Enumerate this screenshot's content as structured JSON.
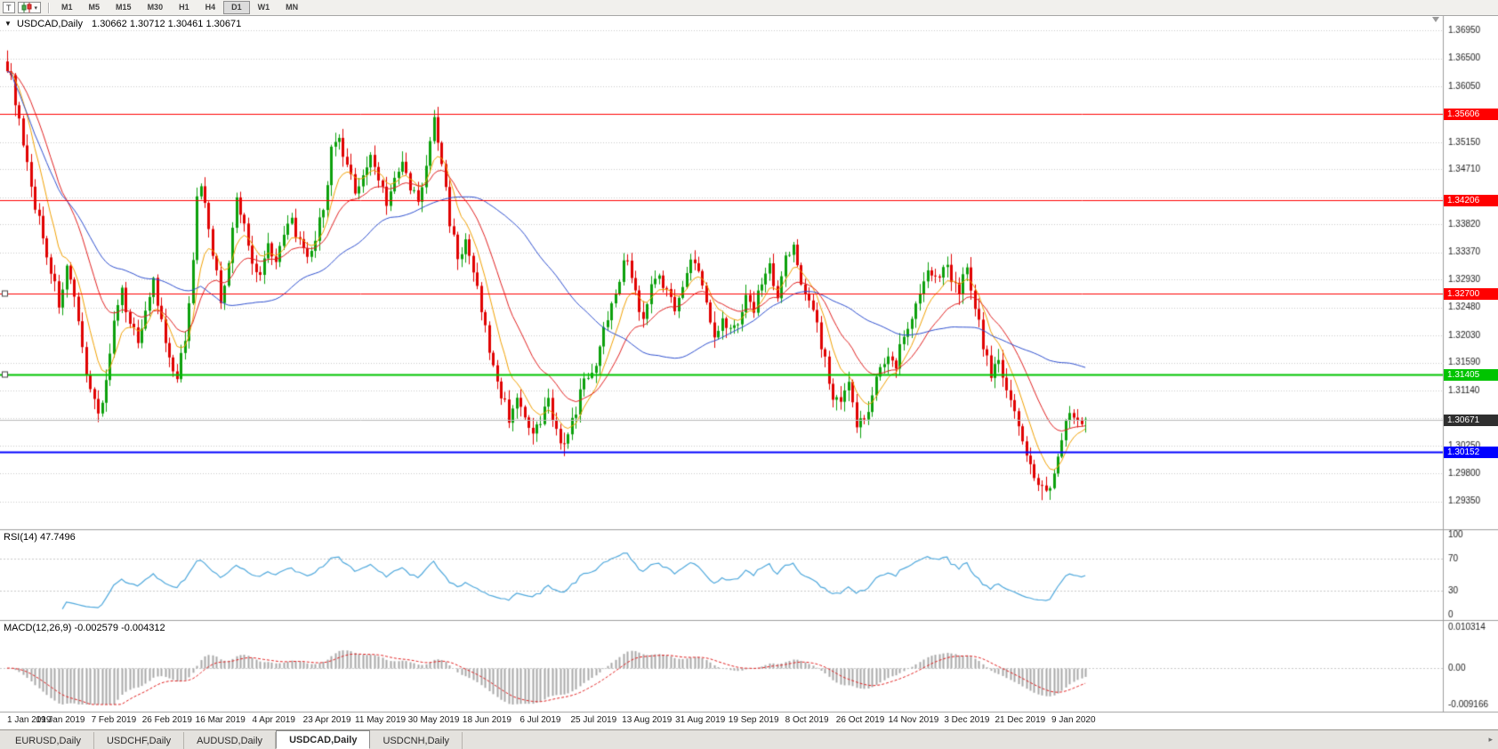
{
  "toolbar": {
    "letter_button": "T",
    "periods": [
      "M1",
      "M5",
      "M15",
      "M30",
      "H1",
      "H4",
      "D1",
      "W1",
      "MN"
    ],
    "active_period": "D1"
  },
  "chart_header": {
    "symbol": "USDCAD,Daily",
    "ohlc_text": "1.30662 1.30712 1.30461 1.30671"
  },
  "indicators": {
    "rsi_label": "RSI(14) 47.7496",
    "macd_label": "MACD(12,26,9) -0.002579 -0.004312"
  },
  "tabs": {
    "items": [
      {
        "label": "EURUSD,Daily",
        "active": false
      },
      {
        "label": "USDCHF,Daily",
        "active": false
      },
      {
        "label": "AUDUSD,Daily",
        "active": false
      },
      {
        "label": "USDCAD,Daily",
        "active": true
      },
      {
        "label": "USDCNH,Daily",
        "active": false
      }
    ],
    "scroll_arrow": "▸"
  },
  "chart_data": {
    "type": "candlestick",
    "symbol": "USDCAD",
    "timeframe": "Daily",
    "current": {
      "open": 1.30662,
      "high": 1.30712,
      "low": 1.30461,
      "close": 1.30671
    },
    "n_candles": 274,
    "candles_per_label": 13.5,
    "noise": 0.0022,
    "colors": {
      "up": "#0CA00C",
      "down": "#E00000",
      "grid": "#C9C9C9",
      "axis_text": "#1A1A1A",
      "separator": "#9E9E9E"
    },
    "price_axis": {
      "min": 1.289,
      "max": 1.372,
      "ticks": [
        "1.36950",
        "1.36500",
        "1.36050",
        "1.35600",
        "1.35150",
        "1.34710",
        "1.34260",
        "1.33820",
        "1.33370",
        "1.32930",
        "1.32480",
        "1.32030",
        "1.31590",
        "1.31140",
        "1.30700",
        "1.30250",
        "1.29800",
        "1.29350"
      ]
    },
    "x_axis_labels": [
      "1 Jan 2019",
      "19 Jan 2019",
      "7 Feb 2019",
      "26 Feb 2019",
      "16 Mar 2019",
      "4 Apr 2019",
      "23 Apr 2019",
      "11 May 2019",
      "30 May 2019",
      "18 Jun 2019",
      "6 Jul 2019",
      "25 Jul 2019",
      "13 Aug 2019",
      "31 Aug 2019",
      "19 Sep 2019",
      "8 Oct 2019",
      "26 Oct 2019",
      "14 Nov 2019",
      "3 Dec 2019",
      "21 Dec 2019",
      "9 Jan 2020"
    ],
    "horizontal_lines": [
      {
        "price": 1.35606,
        "label": "1.35606",
        "color": "#FF0000",
        "width": 1,
        "handles": false
      },
      {
        "price": 1.34206,
        "label": "1.34206",
        "color": "#FF0000",
        "width": 1,
        "handles": false
      },
      {
        "price": 1.327,
        "label": "1.32700",
        "color": "#FF0000",
        "width": 1,
        "handles": true
      },
      {
        "price": 1.31405,
        "label": "1.31405",
        "color": "#00C400",
        "width": 2,
        "handles": true
      },
      {
        "price": 1.30152,
        "label": "1.30152",
        "color": "#0000FF",
        "width": 2,
        "handles": false
      }
    ],
    "current_price_line": {
      "price": 1.30671,
      "label": "1.30671",
      "line_color": "#B8B8B8",
      "badge_color": "#2F2F2F"
    },
    "moving_averages": [
      {
        "name": "fast",
        "type": "ema",
        "period": 8,
        "color": "#F0A000"
      },
      {
        "name": "medium",
        "type": "ema",
        "period": 20,
        "color": "#E02020"
      },
      {
        "name": "slow",
        "type": "sma",
        "period": 50,
        "color": "#2E4FCE"
      }
    ],
    "rsi": {
      "period": 14,
      "display_value": "47.7496",
      "levels": [
        70,
        30
      ],
      "axis": [
        {
          "label": "100",
          "v": 100
        },
        {
          "label": "70",
          "v": 70
        },
        {
          "label": "30",
          "v": 30
        },
        {
          "label": "0",
          "v": 0
        }
      ],
      "color": "#4FA8DC"
    },
    "macd": {
      "fast": 12,
      "slow": 26,
      "signal": 9,
      "display_main": "-0.002579",
      "display_signal": "-0.004312",
      "axis": [
        {
          "label": "0.010314",
          "v": 0.010314
        },
        {
          "label": "0.00",
          "v": 0
        },
        {
          "label": "-0.009166",
          "v": -0.009166
        }
      ],
      "hist_color": "#A8A8A8",
      "signal_color": "#E02020"
    },
    "forced_highs": [
      [
        108,
        1.3567
      ]
    ],
    "forced_lows": [
      [
        141,
        1.3008
      ],
      [
        262,
        1.2937
      ]
    ],
    "price_waypoints": [
      [
        0,
        1.364
      ],
      [
        2,
        1.3585
      ],
      [
        4,
        1.3505
      ],
      [
        6,
        1.344
      ],
      [
        8,
        1.339
      ],
      [
        10,
        1.3335
      ],
      [
        13,
        1.3255
      ],
      [
        15,
        1.331
      ],
      [
        17,
        1.3255
      ],
      [
        19,
        1.318
      ],
      [
        21,
        1.312
      ],
      [
        23,
        1.3075
      ],
      [
        25,
        1.313
      ],
      [
        27,
        1.322
      ],
      [
        29,
        1.327
      ],
      [
        31,
        1.323
      ],
      [
        33,
        1.319
      ],
      [
        35,
        1.325
      ],
      [
        37,
        1.329
      ],
      [
        39,
        1.322
      ],
      [
        41,
        1.316
      ],
      [
        43,
        1.313
      ],
      [
        45,
        1.32
      ],
      [
        47,
        1.333
      ],
      [
        48,
        1.342
      ],
      [
        49,
        1.345
      ],
      [
        51,
        1.338
      ],
      [
        53,
        1.33
      ],
      [
        54,
        1.3255
      ],
      [
        56,
        1.332
      ],
      [
        58,
        1.342
      ],
      [
        60,
        1.338
      ],
      [
        62,
        1.332
      ],
      [
        64,
        1.3305
      ],
      [
        66,
        1.335
      ],
      [
        68,
        1.333
      ],
      [
        70,
        1.336
      ],
      [
        72,
        1.339
      ],
      [
        74,
        1.335
      ],
      [
        76,
        1.332
      ],
      [
        78,
        1.336
      ],
      [
        80,
        1.341
      ],
      [
        82,
        1.35
      ],
      [
        84,
        1.3515
      ],
      [
        86,
        1.347
      ],
      [
        88,
        1.344
      ],
      [
        90,
        1.346
      ],
      [
        92,
        1.349
      ],
      [
        94,
        1.346
      ],
      [
        96,
        1.342
      ],
      [
        98,
        1.345
      ],
      [
        100,
        1.348
      ],
      [
        102,
        1.344
      ],
      [
        104,
        1.342
      ],
      [
        106,
        1.347
      ],
      [
        108,
        1.3555
      ],
      [
        110,
        1.348
      ],
      [
        112,
        1.339
      ],
      [
        114,
        1.333
      ],
      [
        116,
        1.335
      ],
      [
        118,
        1.33
      ],
      [
        120,
        1.325
      ],
      [
        121,
        1.321
      ],
      [
        123,
        1.315
      ],
      [
        125,
        1.311
      ],
      [
        127,
        1.307
      ],
      [
        129,
        1.311
      ],
      [
        131,
        1.306
      ],
      [
        133,
        1.304
      ],
      [
        135,
        1.306
      ],
      [
        137,
        1.31
      ],
      [
        139,
        1.305
      ],
      [
        141,
        1.302
      ],
      [
        143,
        1.306
      ],
      [
        145,
        1.311
      ],
      [
        147,
        1.314
      ],
      [
        149,
        1.316
      ],
      [
        151,
        1.321
      ],
      [
        153,
        1.326
      ],
      [
        155,
        1.33
      ],
      [
        157,
        1.333
      ],
      [
        159,
        1.327
      ],
      [
        161,
        1.323
      ],
      [
        163,
        1.328
      ],
      [
        165,
        1.331
      ],
      [
        167,
        1.327
      ],
      [
        169,
        1.325
      ],
      [
        171,
        1.329
      ],
      [
        173,
        1.332
      ],
      [
        175,
        1.331
      ],
      [
        177,
        1.325
      ],
      [
        179,
        1.32
      ],
      [
        181,
        1.324
      ],
      [
        183,
        1.321
      ],
      [
        185,
        1.323
      ],
      [
        187,
        1.326
      ],
      [
        189,
        1.325
      ],
      [
        191,
        1.329
      ],
      [
        193,
        1.332
      ],
      [
        195,
        1.326
      ],
      [
        197,
        1.333
      ],
      [
        199,
        1.334
      ],
      [
        201,
        1.329
      ],
      [
        203,
        1.327
      ],
      [
        205,
        1.322
      ],
      [
        207,
        1.316
      ],
      [
        209,
        1.31
      ],
      [
        211,
        1.309
      ],
      [
        213,
        1.312
      ],
      [
        215,
        1.306
      ],
      [
        217,
        1.307
      ],
      [
        219,
        1.311
      ],
      [
        221,
        1.315
      ],
      [
        223,
        1.317
      ],
      [
        225,
        1.316
      ],
      [
        227,
        1.321
      ],
      [
        229,
        1.323
      ],
      [
        231,
        1.328
      ],
      [
        233,
        1.331
      ],
      [
        235,
        1.329
      ],
      [
        237,
        1.332
      ],
      [
        239,
        1.33
      ],
      [
        241,
        1.328
      ],
      [
        243,
        1.331
      ],
      [
        245,
        1.325
      ],
      [
        247,
        1.319
      ],
      [
        249,
        1.314
      ],
      [
        251,
        1.316
      ],
      [
        253,
        1.312
      ],
      [
        255,
        1.308
      ],
      [
        256,
        1.305
      ],
      [
        258,
        1.301
      ],
      [
        260,
        1.297
      ],
      [
        262,
        1.295
      ],
      [
        264,
        1.296
      ],
      [
        266,
        1.3
      ],
      [
        268,
        1.306
      ],
      [
        270,
        1.308
      ],
      [
        272,
        1.3055
      ],
      [
        273,
        1.3067
      ]
    ]
  }
}
